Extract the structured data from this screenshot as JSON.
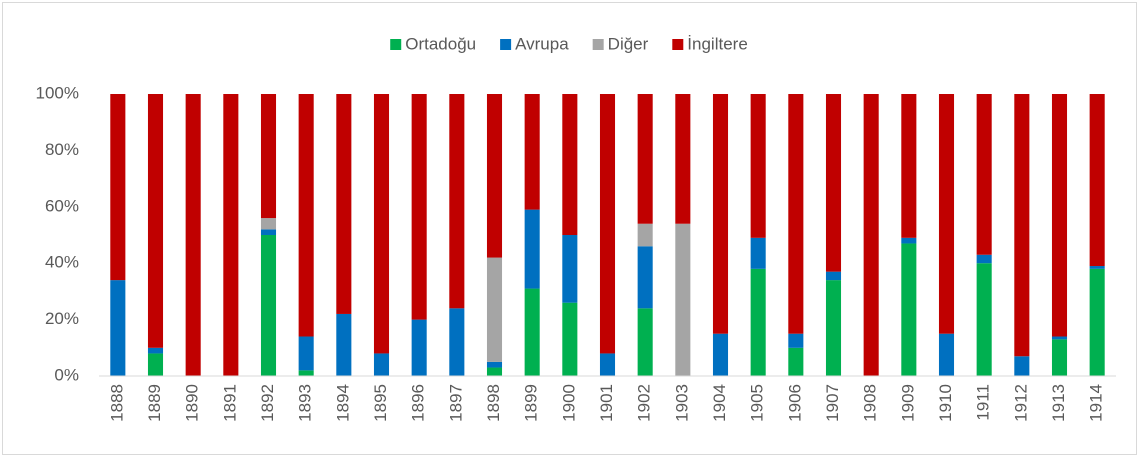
{
  "chart_data": {
    "type": "stacked_bar",
    "categories": [
      "1888",
      "1889",
      "1890",
      "1891",
      "1892",
      "1893",
      "1894",
      "1895",
      "1896",
      "1897",
      "1898",
      "1899",
      "1900",
      "1901",
      "1902",
      "1903",
      "1904",
      "1905",
      "1906",
      "1907",
      "1908",
      "1909",
      "1910",
      "1911",
      "1912",
      "1913",
      "1914"
    ],
    "series": [
      {
        "name": "Ortadoğu",
        "color": "#00b050",
        "values": [
          0,
          8,
          0,
          0,
          50,
          2,
          0,
          0,
          0,
          0,
          3,
          31,
          26,
          0,
          24,
          0,
          0,
          38,
          10,
          34,
          0,
          47,
          0,
          40,
          0,
          13,
          38
        ]
      },
      {
        "name": "Avrupa",
        "color": "#0070c0",
        "values": [
          34,
          2,
          0,
          0,
          2,
          12,
          22,
          8,
          20,
          24,
          2,
          28,
          24,
          8,
          22,
          0,
          15,
          11,
          5,
          3,
          0,
          2,
          15,
          3,
          7,
          1,
          1
        ]
      },
      {
        "name": "Diğer",
        "color": "#a5a5a5",
        "values": [
          0,
          0,
          0,
          0,
          4,
          0,
          0,
          0,
          0,
          0,
          37,
          0,
          0,
          0,
          8,
          54,
          0,
          0,
          0,
          0,
          0,
          0,
          0,
          0,
          0,
          0,
          0
        ]
      },
      {
        "name": "İngiltere",
        "color": "#c00000",
        "values": [
          66,
          90,
          100,
          100,
          44,
          86,
          78,
          92,
          80,
          76,
          58,
          41,
          50,
          92,
          46,
          46,
          85,
          51,
          85,
          63,
          100,
          51,
          85,
          57,
          93,
          86,
          61
        ]
      }
    ],
    "ylim": [
      0,
      100
    ],
    "yticks": [
      {
        "value": 0,
        "label": "0%"
      },
      {
        "value": 20,
        "label": "20%"
      },
      {
        "value": 40,
        "label": "40%"
      },
      {
        "value": 60,
        "label": "60%"
      },
      {
        "value": 80,
        "label": "80%"
      },
      {
        "value": 100,
        "label": "100%"
      }
    ],
    "grid": false,
    "legend": "top"
  }
}
